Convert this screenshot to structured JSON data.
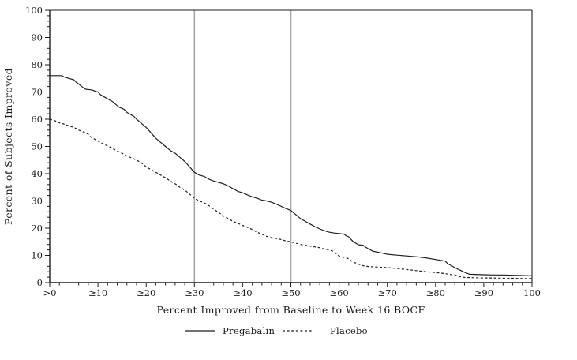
{
  "chart_data": {
    "type": "line",
    "title": "",
    "xlabel": "Percent Improved from Baseline to Week 16 BOCF",
    "ylabel": "Percent of Subjects Improved",
    "xlim": [
      0,
      100
    ],
    "ylim": [
      0,
      100
    ],
    "x_tick_values": [
      0,
      10,
      20,
      30,
      40,
      50,
      60,
      70,
      80,
      90,
      100
    ],
    "x_tick_labels": [
      ">0",
      "≥10",
      "≥20",
      "≥30",
      "≥40",
      "≥50",
      "≥60",
      "≥70",
      "≥80",
      "≥90",
      "100"
    ],
    "y_tick_values": [
      0,
      10,
      20,
      30,
      40,
      50,
      60,
      70,
      80,
      90,
      100
    ],
    "y_tick_labels": [
      "0",
      "10",
      "20",
      "30",
      "40",
      "50",
      "60",
      "70",
      "80",
      "90",
      "100"
    ],
    "minor_tick_step": 2,
    "grid": false,
    "frame": true,
    "reference_lines_x": [
      30,
      50
    ],
    "reference_line_color": "#a8a8a8",
    "line_color": "#1f1f1f",
    "legend_position": "bottom",
    "legend": [
      {
        "label": "Pregabalin",
        "style": "solid"
      },
      {
        "label": "Placebo",
        "style": "dashed"
      }
    ],
    "series": [
      {
        "name": "Pregabalin",
        "style": "solid",
        "points": [
          [
            0,
            76
          ],
          [
            2.5,
            76
          ],
          [
            3,
            75.5
          ],
          [
            4,
            75
          ],
          [
            5,
            74.5
          ],
          [
            5.5,
            73.5
          ],
          [
            6,
            73
          ],
          [
            6.3,
            72.5
          ],
          [
            7,
            71.5
          ],
          [
            7.5,
            71
          ],
          [
            8.5,
            70.8
          ],
          [
            9,
            70.6
          ],
          [
            9.5,
            70.2
          ],
          [
            10,
            70
          ],
          [
            10.5,
            69
          ],
          [
            11,
            68.5
          ],
          [
            12,
            67.5
          ],
          [
            13,
            66.5
          ],
          [
            14,
            65
          ],
          [
            14.5,
            64.3
          ],
          [
            15,
            64
          ],
          [
            15.5,
            63.5
          ],
          [
            16,
            62.5
          ],
          [
            16.5,
            62
          ],
          [
            17,
            61.5
          ],
          [
            17.5,
            61
          ],
          [
            18,
            60
          ],
          [
            19,
            58.5
          ],
          [
            20,
            57
          ],
          [
            21,
            55
          ],
          [
            22,
            53
          ],
          [
            23,
            51.5
          ],
          [
            24,
            50
          ],
          [
            25,
            48.5
          ],
          [
            26,
            47.5
          ],
          [
            27,
            46
          ],
          [
            28,
            44.5
          ],
          [
            29,
            42.5
          ],
          [
            29.5,
            41.5
          ],
          [
            30,
            40.5
          ],
          [
            31,
            39.5
          ],
          [
            32,
            39
          ],
          [
            33,
            38
          ],
          [
            34,
            37.3
          ],
          [
            35,
            36.8
          ],
          [
            36,
            36.3
          ],
          [
            37,
            35.5
          ],
          [
            38,
            34.5
          ],
          [
            39,
            33.5
          ],
          [
            40,
            33
          ],
          [
            41,
            32.2
          ],
          [
            42,
            31.5
          ],
          [
            43,
            31
          ],
          [
            44,
            30.3
          ],
          [
            45,
            30
          ],
          [
            46,
            29.5
          ],
          [
            47,
            28.8
          ],
          [
            48,
            28
          ],
          [
            49,
            27.2
          ],
          [
            50,
            26.5
          ],
          [
            51,
            25
          ],
          [
            52,
            23.5
          ],
          [
            53,
            22.5
          ],
          [
            54,
            21.5
          ],
          [
            55,
            20.5
          ],
          [
            56,
            19.7
          ],
          [
            57,
            19
          ],
          [
            58,
            18.5
          ],
          [
            59,
            18.2
          ],
          [
            60,
            18
          ],
          [
            61,
            17.8
          ],
          [
            61.5,
            17.2
          ],
          [
            62,
            16.8
          ],
          [
            62.5,
            15.8
          ],
          [
            63,
            15
          ],
          [
            64,
            13.9
          ],
          [
            65,
            13.7
          ],
          [
            65.5,
            13
          ],
          [
            66,
            12.5
          ],
          [
            67,
            11.5
          ],
          [
            68,
            11.2
          ],
          [
            69,
            10.8
          ],
          [
            70,
            10.4
          ],
          [
            72,
            10.1
          ],
          [
            74,
            9.8
          ],
          [
            76,
            9.5
          ],
          [
            78,
            9.1
          ],
          [
            80,
            8.5
          ],
          [
            81,
            8.2
          ],
          [
            82,
            7.9
          ],
          [
            82.5,
            7
          ],
          [
            83,
            6.5
          ],
          [
            84,
            5.5
          ],
          [
            85,
            4.6
          ],
          [
            86,
            3.8
          ],
          [
            87,
            3.1
          ],
          [
            88,
            3
          ],
          [
            90,
            2.9
          ],
          [
            92,
            2.8
          ],
          [
            94,
            2.8
          ],
          [
            96,
            2.7
          ],
          [
            98,
            2.6
          ],
          [
            100,
            2.5
          ]
        ]
      },
      {
        "name": "Placebo",
        "style": "dashed",
        "points": [
          [
            0,
            60
          ],
          [
            1,
            59.5
          ],
          [
            2,
            58.7
          ],
          [
            3,
            58.2
          ],
          [
            4,
            57.5
          ],
          [
            5,
            57
          ],
          [
            6,
            56
          ],
          [
            7,
            55.3
          ],
          [
            8,
            54.5
          ],
          [
            8.5,
            53.5
          ],
          [
            9,
            53
          ],
          [
            10,
            52
          ],
          [
            11,
            51
          ],
          [
            12,
            50.2
          ],
          [
            13,
            49.3
          ],
          [
            14,
            48.3
          ],
          [
            15,
            47.5
          ],
          [
            16,
            46.5
          ],
          [
            17,
            45.8
          ],
          [
            18,
            45
          ],
          [
            19,
            44
          ],
          [
            20,
            42.5
          ],
          [
            21,
            41.5
          ],
          [
            22,
            40.5
          ],
          [
            23,
            39.5
          ],
          [
            24,
            38.5
          ],
          [
            25,
            37.3
          ],
          [
            26,
            36.3
          ],
          [
            27,
            35
          ],
          [
            28,
            34
          ],
          [
            29,
            32.5
          ],
          [
            30,
            31
          ],
          [
            31,
            30
          ],
          [
            32,
            29.3
          ],
          [
            33,
            28.3
          ],
          [
            34,
            27
          ],
          [
            35,
            25.8
          ],
          [
            36,
            24.5
          ],
          [
            37,
            23.5
          ],
          [
            38,
            22.5
          ],
          [
            39,
            21.8
          ],
          [
            40,
            21
          ],
          [
            41,
            20.3
          ],
          [
            42,
            19.5
          ],
          [
            43,
            18.5
          ],
          [
            44,
            17.8
          ],
          [
            45,
            17
          ],
          [
            46,
            16.5
          ],
          [
            47,
            16.2
          ],
          [
            48,
            15.8
          ],
          [
            49,
            15.3
          ],
          [
            50,
            15
          ],
          [
            51,
            14.5
          ],
          [
            52,
            14
          ],
          [
            53,
            13.7
          ],
          [
            54,
            13.4
          ],
          [
            55,
            13.1
          ],
          [
            56,
            12.8
          ],
          [
            57,
            12.3
          ],
          [
            58,
            12
          ],
          [
            59,
            11.3
          ],
          [
            59.5,
            10.5
          ],
          [
            60,
            9.8
          ],
          [
            61,
            9.3
          ],
          [
            62,
            8.8
          ],
          [
            62.5,
            8
          ],
          [
            63,
            7.5
          ],
          [
            64,
            6.8
          ],
          [
            65,
            6.2
          ],
          [
            66,
            5.9
          ],
          [
            67,
            5.8
          ],
          [
            68,
            5.7
          ],
          [
            70,
            5.5
          ],
          [
            72,
            5.2
          ],
          [
            74,
            4.8
          ],
          [
            76,
            4.4
          ],
          [
            78,
            4
          ],
          [
            80,
            3.7
          ],
          [
            82,
            3.3
          ],
          [
            83,
            3
          ],
          [
            84,
            2.8
          ],
          [
            85,
            2.2
          ],
          [
            86,
            1.9
          ],
          [
            88,
            1.8
          ],
          [
            90,
            1.7
          ],
          [
            92,
            1.7
          ],
          [
            94,
            1.6
          ],
          [
            96,
            1.6
          ],
          [
            98,
            1.5
          ],
          [
            100,
            1.5
          ]
        ]
      }
    ]
  }
}
